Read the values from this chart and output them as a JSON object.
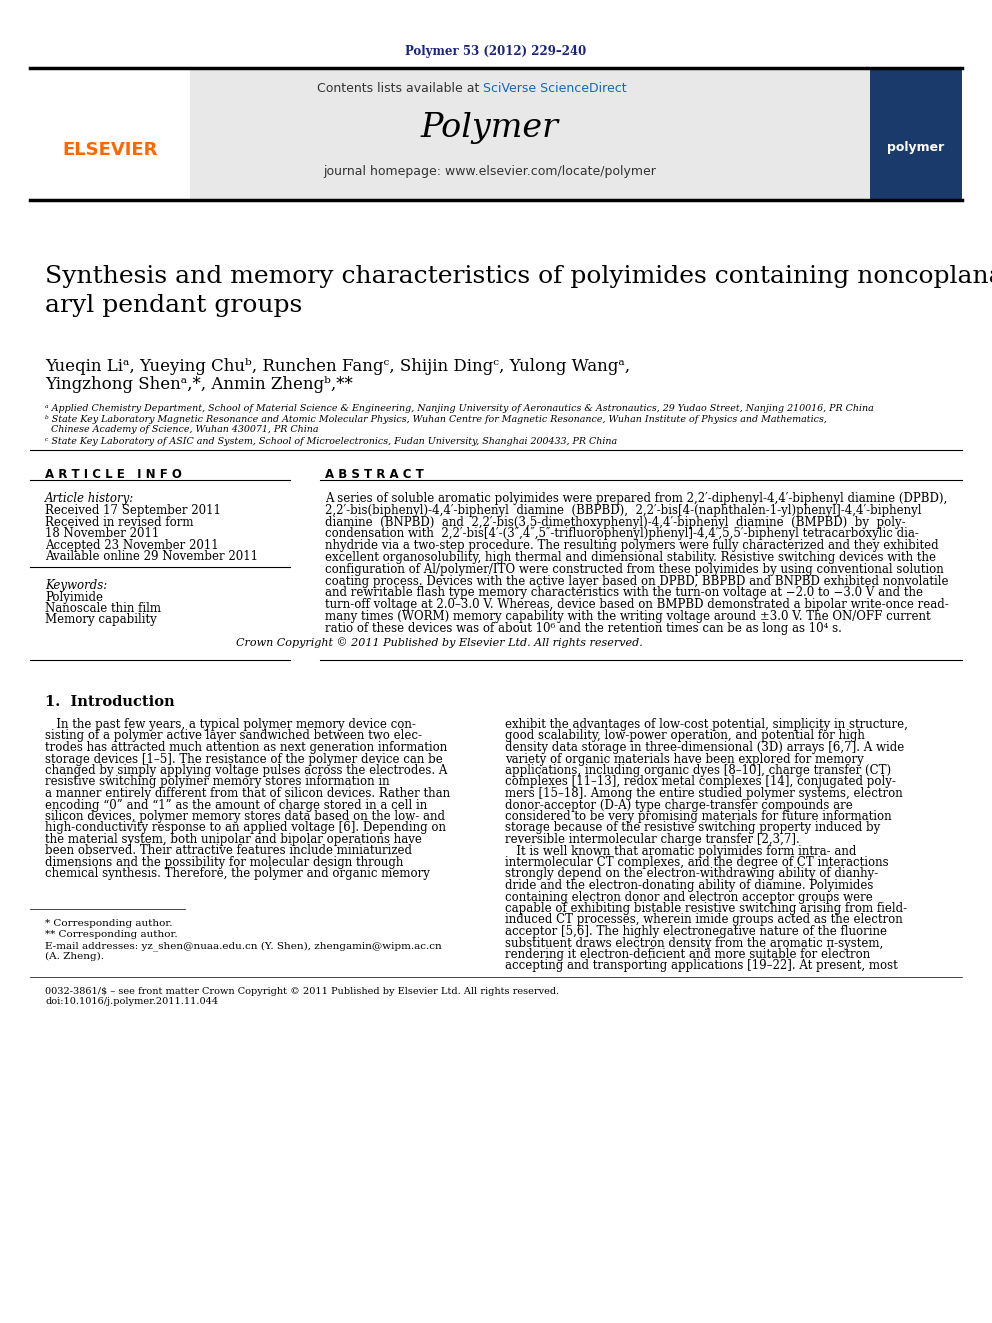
{
  "journal_ref": "Polymer 53 (2012) 229–240",
  "journal_ref_color": "#1a237e",
  "contents_text": "Contents lists available at ",
  "sciverse_text": "SciVerse ScienceDirect",
  "sciverse_color": "#1565C0",
  "journal_name": "Polymer",
  "homepage_text": "journal homepage: www.elsevier.com/locate/polymer",
  "elsevier_color": "#FF6600",
  "title": "Synthesis and memory characteristics of polyimides containing noncoplanar\naryl pendant groups",
  "authors_line1": "Yueqin Liᵃ, Yueying Chuᵇ, Runchen Fangᶜ, Shijin Dingᶜ, Yulong Wangᵃ,",
  "authors_line2": "Yingzhong Shenᵃ,*, Anmin Zhengᵇ,**",
  "affil_a": "ᵃ Applied Chemistry Department, School of Material Science & Engineering, Nanjing University of Aeronautics & Astronautics, 29 Yudao Street, Nanjing 210016, PR China",
  "affil_b1": "ᵇ State Key Laboratory Magnetic Resonance and Atomic Molecular Physics, Wuhan Centre for Magnetic Resonance, Wuhan Institute of Physics and Mathematics,",
  "affil_b2": "  Chinese Academy of Science, Wuhan 430071, PR China",
  "affil_c": "ᶜ State Key Laboratory of ASIC and System, School of Microelectronics, Fudan University, Shanghai 200433, PR China",
  "article_info_header": "A R T I C L E   I N F O",
  "abstract_header": "A B S T R A C T",
  "article_history_label": "Article history:",
  "received": "Received 17 September 2011",
  "revised1": "Received in revised form",
  "revised2": "18 November 2011",
  "accepted": "Accepted 23 November 2011",
  "available": "Available online 29 November 2011",
  "keywords_label": "Keywords:",
  "kw1": "Polyimide",
  "kw2": "Nanoscale thin film",
  "kw3": "Memory capability",
  "abstract_line1": "A series of soluble aromatic polyimides were prepared from 2,2′-diphenyl-4,4′-biphenyl diamine (DPBD),",
  "abstract_line2": "2,2′-bis(biphenyl)-4,4′-biphenyl  diamine  (BBPBD),  2,2′-bis[4-(naphthalen-1-yl)phenyl]-4,4′-biphenyl",
  "abstract_line3": "diamine  (BNPBD)  and  2,2′-bis(3,5-dimethoxyphenyl)-4,4′-biphenyl  diamine  (BMPBD)  by  poly-",
  "abstract_line4": "condensation with  2,2′-bis[4′-(3″,4″,5″-trifluorophenyl)phenyl]-4,4′,5,5′-biphenyl tetracarboxylic dia-",
  "abstract_line5": "nhydride via a two-step procedure. The resulting polymers were fully characterized and they exhibited",
  "abstract_line6": "excellent organosolubility, high thermal and dimensional stability. Resistive switching devices with the",
  "abstract_line7": "configuration of Al/polymer/ITO were constructed from these polyimides by using conventional solution",
  "abstract_line8": "coating process. Devices with the active layer based on DPBD, BBPBD and BNPBD exhibited nonvolatile",
  "abstract_line9": "and rewritable flash type memory characteristics with the turn-on voltage at −2.0 to −3.0 V and the",
  "abstract_line10": "turn-off voltage at 2.0–3.0 V. Whereas, device based on BMPBD demonstrated a bipolar write-once read-",
  "abstract_line11": "many times (WORM) memory capability with the writing voltage around ±3.0 V. The ON/OFF current",
  "abstract_line12": "ratio of these devices was of about 10⁶ and the retention times can be as long as 10⁴ s.",
  "copyright_text": "Crown Copyright © 2011 Published by Elsevier Ltd. All rights reserved.",
  "intro_header": "1.  Introduction",
  "intro_col1_lines": [
    "   In the past few years, a typical polymer memory device con-",
    "sisting of a polymer active layer sandwiched between two elec-",
    "trodes has attracted much attention as next generation information",
    "storage devices [1–5]. The resistance of the polymer device can be",
    "changed by simply applying voltage pulses across the electrodes. A",
    "resistive switching polymer memory stores information in",
    "a manner entirely different from that of silicon devices. Rather than",
    "encoding “0” and “1” as the amount of charge stored in a cell in",
    "silicon devices, polymer memory stores data based on the low- and",
    "high-conductivity response to an applied voltage [6]. Depending on",
    "the material system, both unipolar and bipolar operations have",
    "been observed. Their attractive features include miniaturized",
    "dimensions and the possibility for molecular design through",
    "chemical synthesis. Therefore, the polymer and organic memory"
  ],
  "intro_col2_lines": [
    "exhibit the advantages of low-cost potential, simplicity in structure,",
    "good scalability, low-power operation, and potential for high",
    "density data storage in three-dimensional (3D) arrays [6,7]. A wide",
    "variety of organic materials have been explored for memory",
    "applications, including organic dyes [8–10], charge transfer (CT)",
    "complexes [11–13], redox metal complexes [14], conjugated poly-",
    "mers [15–18]. Among the entire studied polymer systems, electron",
    "donor-acceptor (D-A) type charge-transfer compounds are",
    "considered to be very promising materials for future information",
    "storage because of the resistive switching property induced by",
    "reversible intermolecular charge transfer [2,3,7].",
    "   It is well known that aromatic polyimides form intra- and",
    "intermolecular CT complexes, and the degree of CT interactions",
    "strongly depend on the electron-withdrawing ability of dianhy-",
    "dride and the electron-donating ability of diamine. Polyimides",
    "containing electron donor and electron acceptor groups were",
    "capable of exhibiting bistable resistive switching arising from field-",
    "induced CT processes, wherein imide groups acted as the electron",
    "acceptor [5,6]. The highly electronegative nature of the fluorine",
    "substituent draws electron density from the aromatic π-system,",
    "rendering it electron-deficient and more suitable for electron",
    "accepting and transporting applications [19–22]. At present, most"
  ],
  "footnote1": "* Corresponding author.",
  "footnote2": "** Corresponding author.",
  "footnote3a": "E-mail addresses: yz_shen@nuaa.edu.cn (Y. Shen), zhengamin@wipm.ac.cn",
  "footnote3b": "(A. Zheng).",
  "footer_line1": "0032-3861/$ – see front matter Crown Copyright © 2011 Published by Elsevier Ltd. All rights reserved.",
  "footer_line2": "doi:10.1016/j.polymer.2011.11.044",
  "bg_color": "#ffffff",
  "header_bg_color": "#e8e8e8",
  "elsevier_logo_bg": "#ffffff",
  "cover_bg": "#1a3a6b",
  "text_color": "#000000"
}
